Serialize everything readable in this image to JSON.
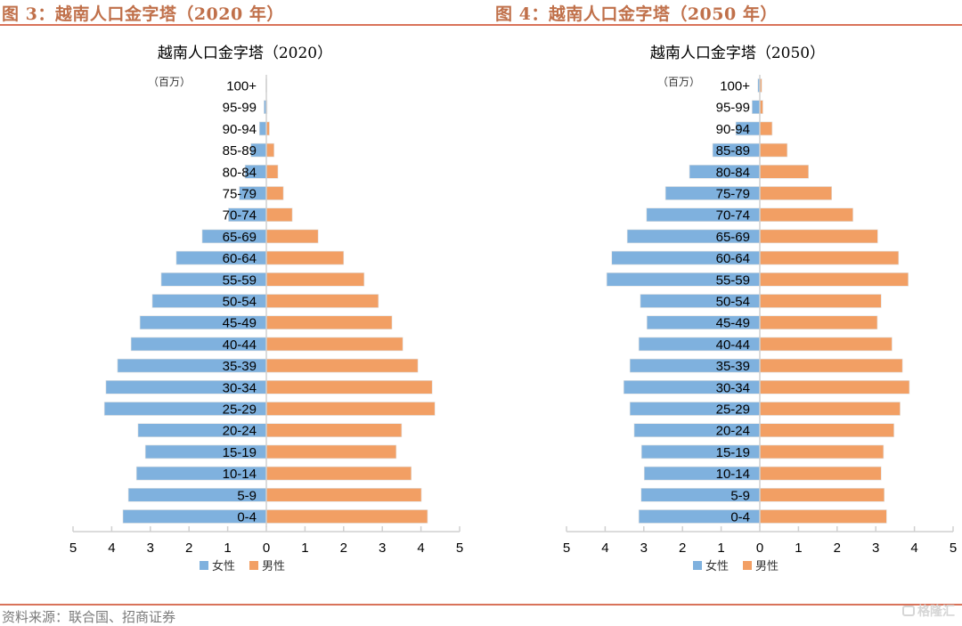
{
  "figures": [
    {
      "title": "图 3：越南人口金字塔（2020 年）"
    },
    {
      "title": "图 4：越南人口金字塔（2050 年）"
    }
  ],
  "colors": {
    "title": "#C0704A",
    "rule": "#D9735A",
    "female": "#7FB1DE",
    "male": "#F29F64",
    "axis": "#D0D0D0",
    "text": "#000000"
  },
  "source": "资料来源：联合国、招商证券",
  "watermark": "格隆汇",
  "chart_data": [
    {
      "type": "bar",
      "orientation": "horizontal-population-pyramid",
      "title": "越南人口金字塔（2020）",
      "unit_label": "（百万）",
      "categories": [
        "100+",
        "95-99",
        "90-94",
        "85-89",
        "80-84",
        "75-79",
        "70-74",
        "65-69",
        "60-64",
        "55-59",
        "50-54",
        "45-49",
        "40-44",
        "35-39",
        "30-34",
        "25-29",
        "20-24",
        "15-19",
        "10-14",
        "5-9",
        "0-4"
      ],
      "series": [
        {
          "name": "女性",
          "side": "left",
          "values": [
            0.01,
            0.06,
            0.18,
            0.4,
            0.55,
            0.7,
            0.98,
            1.66,
            2.33,
            2.72,
            2.95,
            3.27,
            3.5,
            3.85,
            4.15,
            4.19,
            3.32,
            3.13,
            3.36,
            3.57,
            3.71
          ]
        },
        {
          "name": "男性",
          "side": "right",
          "values": [
            0.01,
            0.02,
            0.08,
            0.2,
            0.3,
            0.44,
            0.67,
            1.34,
            2.0,
            2.53,
            2.9,
            3.25,
            3.53,
            3.92,
            4.29,
            4.36,
            3.5,
            3.36,
            3.75,
            4.01,
            4.17
          ]
        }
      ],
      "xlim": [
        -5,
        5
      ],
      "xticks": [
        "5",
        "4",
        "3",
        "2",
        "1",
        "0",
        "1",
        "2",
        "3",
        "4",
        "5"
      ],
      "legend": [
        "女性",
        "男性"
      ],
      "legend_position": "bottom",
      "grid": false
    },
    {
      "type": "bar",
      "orientation": "horizontal-population-pyramid",
      "title": "越南人口金字塔（2050）",
      "unit_label": "（百万）",
      "categories": [
        "100+",
        "95-99",
        "90-94",
        "85-89",
        "80-84",
        "75-79",
        "70-74",
        "65-69",
        "60-64",
        "55-59",
        "50-54",
        "45-49",
        "40-44",
        "35-39",
        "30-34",
        "25-29",
        "20-24",
        "15-19",
        "10-14",
        "5-9",
        "0-4"
      ],
      "series": [
        {
          "name": "女性",
          "side": "left",
          "values": [
            0.05,
            0.2,
            0.62,
            1.22,
            1.82,
            2.44,
            2.93,
            3.43,
            3.83,
            3.96,
            3.09,
            2.92,
            3.13,
            3.36,
            3.52,
            3.36,
            3.25,
            3.06,
            2.99,
            3.07,
            3.13
          ]
        },
        {
          "name": "男性",
          "side": "right",
          "values": [
            0.05,
            0.08,
            0.32,
            0.71,
            1.26,
            1.86,
            2.41,
            3.05,
            3.59,
            3.84,
            3.14,
            3.04,
            3.42,
            3.69,
            3.87,
            3.63,
            3.47,
            3.2,
            3.14,
            3.22,
            3.28
          ]
        }
      ],
      "xlim": [
        -5,
        5
      ],
      "xticks": [
        "5",
        "4",
        "3",
        "2",
        "1",
        "0",
        "1",
        "2",
        "3",
        "4",
        "5"
      ],
      "legend": [
        "女性",
        "男性"
      ],
      "legend_position": "bottom",
      "grid": false
    }
  ]
}
